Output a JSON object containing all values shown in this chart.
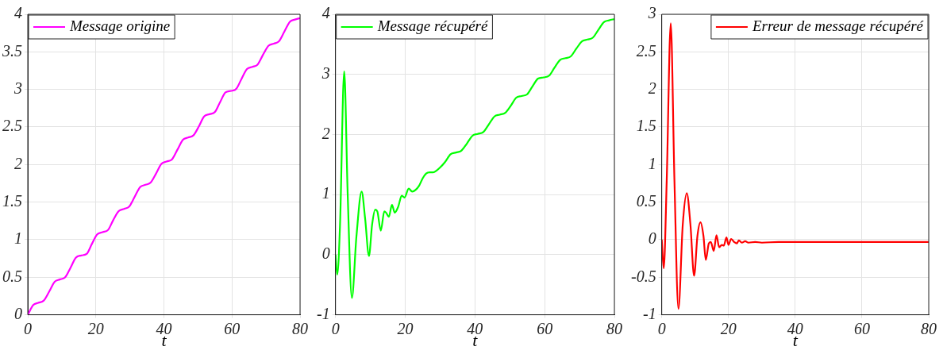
{
  "chart_data": [
    {
      "type": "line",
      "xlabel": "t",
      "xlim": [
        0,
        80
      ],
      "xticks": [
        0,
        20,
        40,
        60,
        80
      ],
      "ylim": [
        0,
        4
      ],
      "yticks": [
        0,
        0.5,
        1,
        1.5,
        2,
        2.5,
        3,
        3.5,
        4
      ],
      "grid": true,
      "legend": "top left",
      "series": [
        {
          "name": "Message origine",
          "color": "#ff00ff",
          "x": [
            0,
            1.6,
            3.1,
            4.7,
            6.3,
            7.9,
            9.4,
            11.0,
            12.6,
            14.1,
            15.7,
            17.3,
            18.8,
            20.4,
            22.0,
            23.6,
            25.1,
            26.7,
            28.3,
            29.8,
            31.4,
            33.0,
            34.6,
            36.1,
            37.7,
            39.3,
            40.8,
            42.4,
            44.0,
            45.6,
            47.1,
            48.7,
            50.3,
            51.8,
            53.4,
            55.0,
            56.5,
            58.1,
            59.7,
            61.3,
            62.8,
            64.4,
            66.0,
            67.5,
            69.1,
            70.7,
            72.3,
            73.8,
            75.4,
            77.0,
            78.5,
            80
          ],
          "values": [
            0,
            0.13,
            0.16,
            0.19,
            0.31,
            0.44,
            0.47,
            0.5,
            0.63,
            0.76,
            0.79,
            0.81,
            0.94,
            1.07,
            1.1,
            1.13,
            1.26,
            1.38,
            1.41,
            1.44,
            1.57,
            1.7,
            1.73,
            1.76,
            1.88,
            2.01,
            2.04,
            2.07,
            2.2,
            2.33,
            2.36,
            2.39,
            2.51,
            2.64,
            2.67,
            2.7,
            2.83,
            2.96,
            2.98,
            3.01,
            3.14,
            3.27,
            3.3,
            3.33,
            3.46,
            3.58,
            3.61,
            3.64,
            3.77,
            3.9,
            3.93,
            3.95
          ]
        }
      ]
    },
    {
      "type": "line",
      "xlabel": "t",
      "xlim": [
        0,
        80
      ],
      "xticks": [
        0,
        20,
        40,
        60,
        80
      ],
      "ylim": [
        -1,
        4
      ],
      "yticks": [
        -1,
        0,
        1,
        2,
        3,
        4
      ],
      "grid": true,
      "legend": "top left",
      "series": [
        {
          "name": "Message récupéré",
          "color": "#00ff00",
          "x": [
            0,
            0.5,
            1.3,
            2.5,
            3.5,
            4.7,
            6,
            7.5,
            8.5,
            9.6,
            10.5,
            11.4,
            12,
            13,
            14,
            14.5,
            15.3,
            16.2,
            17,
            18,
            19,
            19.8,
            21,
            22,
            23,
            24,
            25,
            26,
            27,
            28,
            29,
            30,
            31.4,
            33.0,
            34.6,
            36.1,
            37.7,
            39.3,
            40.8,
            42.4,
            44.0,
            45.6,
            47.1,
            48.7,
            50.3,
            51.8,
            53.4,
            55.0,
            56.5,
            58.1,
            59.7,
            61.3,
            62.8,
            64.4,
            66.0,
            67.5,
            69.1,
            70.7,
            72.3,
            73.8,
            75.4,
            77.0,
            78.5,
            80
          ],
          "values": [
            0,
            -0.33,
            0.5,
            3.05,
            1.0,
            -0.72,
            0.3,
            1.05,
            0.6,
            -0.02,
            0.5,
            0.75,
            0.72,
            0.4,
            0.72,
            0.7,
            0.63,
            0.83,
            0.7,
            0.8,
            0.98,
            0.95,
            1.1,
            1.05,
            1.08,
            1.15,
            1.27,
            1.35,
            1.37,
            1.37,
            1.4,
            1.45,
            1.54,
            1.67,
            1.7,
            1.73,
            1.85,
            1.98,
            2.01,
            2.04,
            2.17,
            2.3,
            2.33,
            2.36,
            2.48,
            2.61,
            2.64,
            2.67,
            2.8,
            2.93,
            2.95,
            2.98,
            3.11,
            3.24,
            3.27,
            3.3,
            3.43,
            3.55,
            3.58,
            3.61,
            3.74,
            3.87,
            3.9,
            3.92
          ]
        }
      ]
    },
    {
      "type": "line",
      "xlabel": "t",
      "xlim": [
        0,
        80
      ],
      "xticks": [
        0,
        20,
        40,
        60,
        80
      ],
      "ylim": [
        -1,
        3
      ],
      "yticks": [
        -1,
        -0.5,
        0,
        0.5,
        1,
        1.5,
        2,
        2.5,
        3
      ],
      "grid": true,
      "legend": "top right",
      "series": [
        {
          "name": "Erreur de message récupéré",
          "color": "#ff0000",
          "x": [
            0,
            0.6,
            1.5,
            2.7,
            3.8,
            5,
            6.3,
            7.5,
            8.6,
            9.7,
            10.7,
            11.6,
            12.5,
            13.2,
            14.1,
            14.7,
            15.6,
            16.4,
            17.2,
            18,
            18.6,
            19.4,
            20,
            20.8,
            21.7,
            22.5,
            23.1,
            24,
            25,
            26,
            28,
            30,
            35,
            80
          ],
          "values": [
            0,
            -0.38,
            0.8,
            2.88,
            0.8,
            -0.92,
            0.2,
            0.62,
            0.2,
            -0.48,
            0.05,
            0.23,
            0.05,
            -0.27,
            -0.05,
            -0.03,
            -0.15,
            0.06,
            -0.1,
            -0.07,
            -0.08,
            0.03,
            -0.07,
            0.01,
            -0.03,
            -0.05,
            -0.01,
            -0.04,
            -0.02,
            -0.04,
            -0.03,
            -0.04,
            -0.03,
            -0.03
          ]
        }
      ]
    }
  ]
}
